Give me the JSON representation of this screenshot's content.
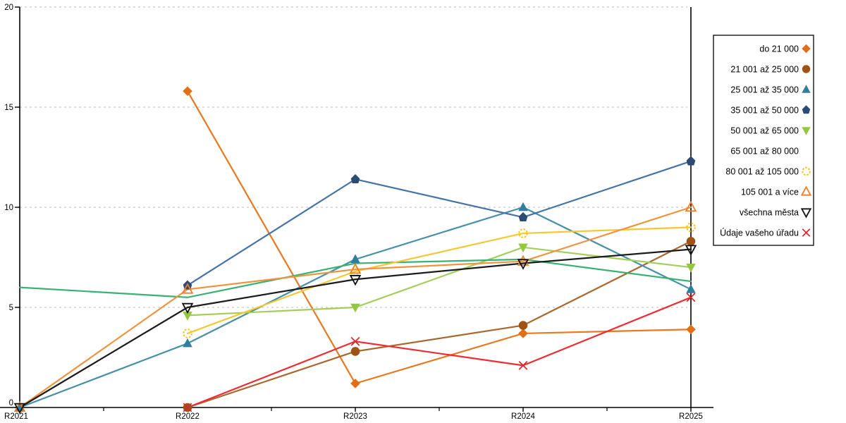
{
  "chart_data": {
    "type": "line",
    "title": "",
    "xlabel": "",
    "ylabel": "",
    "categories": [
      "R2021",
      "R2022",
      "R2023",
      "R2024",
      "R2025"
    ],
    "ylim": [
      0,
      20
    ],
    "yticks": [
      0,
      5,
      10,
      15,
      20
    ],
    "grid": "horizontal dashed light-gray",
    "legend_position": "right-outside-boxed",
    "axis_color": "#000000",
    "grid_color": "#c9c9c9",
    "series": [
      {
        "name": "do 21 000",
        "marker": "diamond",
        "fill": "filled",
        "color": "#e8791e",
        "marker_color": "#e06f15",
        "values": [
          null,
          15.8,
          1.2,
          3.7,
          3.9
        ]
      },
      {
        "name": "21 001 až 25 000",
        "marker": "circle",
        "fill": "filled",
        "color": "#a8682f",
        "marker_color": "#9e5312",
        "values": [
          null,
          0,
          2.8,
          4.1,
          8.3
        ]
      },
      {
        "name": "25 001 až 35 000",
        "marker": "triangle-up",
        "fill": "filled",
        "color": "#4690a8",
        "marker_color": "#2f7e9d",
        "values": [
          0,
          3.2,
          7.4,
          10,
          5.9
        ]
      },
      {
        "name": "35 001 až 50 000",
        "marker": "pentagon",
        "fill": "filled",
        "color": "#4573a7",
        "marker_color": "#2b4a74",
        "values": [
          null,
          6.1,
          11.4,
          9.5,
          12.3
        ]
      },
      {
        "name": "50 001 až 65 000",
        "marker": "triangle-down",
        "fill": "filled",
        "color": "#a3ce5c",
        "marker_color": "#94c83f",
        "values": [
          null,
          4.6,
          5,
          8,
          7
        ]
      },
      {
        "name": "65 001 až 80 000",
        "marker": "square",
        "fill": "open",
        "color": "#37b272",
        "marker_color": "#21a55b",
        "values": [
          6,
          5.5,
          7.2,
          7.4,
          6.3
        ]
      },
      {
        "name": "80 001 až 105 000",
        "marker": "circle-dashed",
        "fill": "open",
        "color": "#f5c832",
        "marker_color": "#f3c312",
        "values": [
          null,
          3.7,
          6.8,
          8.7,
          9
        ]
      },
      {
        "name": "105 001 a více",
        "marker": "triangle-up",
        "fill": "open",
        "color": "#f0933f",
        "marker_color": "#ed7d2b",
        "values": [
          0,
          5.9,
          6.9,
          7.3,
          10
        ]
      },
      {
        "name": "všechna města",
        "marker": "triangle-down",
        "fill": "open",
        "color": "#1c1c1c",
        "marker_color": "#111111",
        "values": [
          0,
          5,
          6.4,
          7.2,
          7.9
        ]
      },
      {
        "name": "Údaje vašeho úřadu",
        "marker": "x",
        "fill": "open",
        "color": "#ee2c34",
        "marker_color": "#d8242c",
        "values": [
          null,
          0,
          3.3,
          2.1,
          5.5
        ]
      }
    ]
  }
}
